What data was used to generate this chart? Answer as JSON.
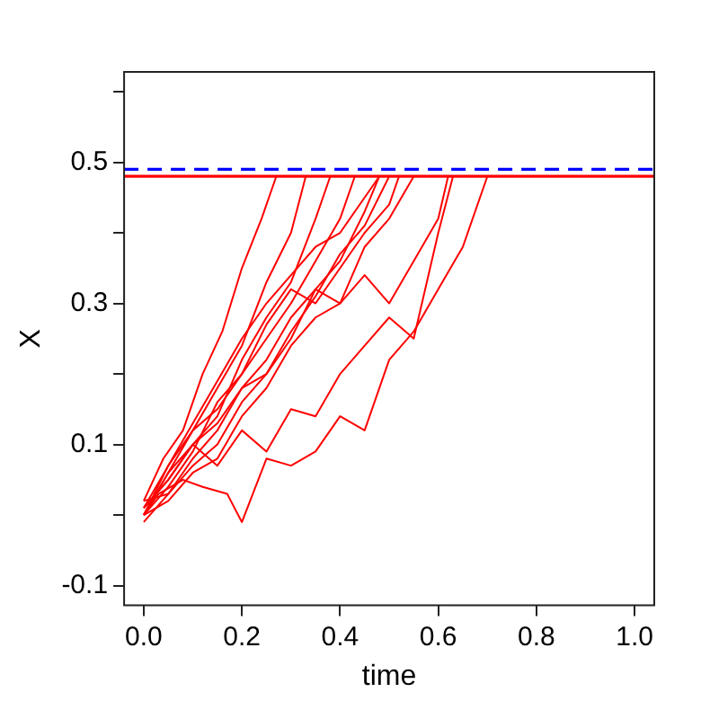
{
  "chart_data": {
    "type": "line",
    "xlabel": "time",
    "ylabel": "X",
    "marker": "none",
    "line_style": "solid",
    "grid": false,
    "legend": false,
    "xlim": [
      -0.04,
      1.04
    ],
    "ylim": [
      -0.128,
      0.628
    ],
    "xticks": [
      {
        "value": 0,
        "label": "0.0"
      },
      0.2,
      0.4,
      0.6,
      0.8,
      {
        "value": 1,
        "label": "1.0"
      }
    ],
    "yticks": [
      -0.1,
      {
        "value": 0,
        "label": null
      },
      0.1,
      {
        "value": 0.2,
        "label": null
      },
      0.3,
      {
        "value": 0.4,
        "label": null
      },
      0.5,
      {
        "value": 0.6,
        "label": null
      }
    ],
    "ref_lines": [
      {
        "axis": "y",
        "value": 0.49,
        "color": "#0000ff",
        "line_style": "dashed"
      },
      {
        "axis": "y",
        "value": 0.48,
        "color": "#ff0000",
        "line_style": "solid"
      }
    ],
    "series": [
      {
        "color": "#ff0000",
        "x": [
          0,
          0.03,
          0.08,
          0.12,
          0.17,
          0.2,
          0.25,
          0.3,
          0.35,
          0.4,
          0.45,
          0.5,
          0.55,
          0.6,
          0.65,
          0.7
        ],
        "values": [
          0,
          0.03,
          0.05,
          0.04,
          0.03,
          -0.01,
          0.08,
          0.07,
          0.09,
          0.14,
          0.12,
          0.22,
          0.26,
          0.32,
          0.38,
          0.48
        ]
      },
      {
        "color": "#ff0000",
        "x": [
          0,
          0.05,
          0.1,
          0.15,
          0.2,
          0.25,
          0.3,
          0.35,
          0.4,
          0.45,
          0.5,
          0.55,
          0.6,
          0.63
        ],
        "values": [
          0.01,
          0.05,
          0.1,
          0.07,
          0.12,
          0.09,
          0.15,
          0.14,
          0.2,
          0.24,
          0.28,
          0.25,
          0.4,
          0.48
        ]
      },
      {
        "color": "#ff0000",
        "x": [
          0,
          0.05,
          0.1,
          0.15,
          0.2,
          0.25,
          0.3,
          0.35,
          0.4,
          0.45,
          0.5,
          0.55
        ],
        "values": [
          0,
          0.06,
          0.1,
          0.13,
          0.18,
          0.2,
          0.25,
          0.32,
          0.3,
          0.38,
          0.42,
          0.48
        ]
      },
      {
        "color": "#ff0000",
        "x": [
          0,
          0.04,
          0.08,
          0.12,
          0.16,
          0.2,
          0.24,
          0.27
        ],
        "values": [
          0.02,
          0.08,
          0.12,
          0.2,
          0.26,
          0.35,
          0.42,
          0.48
        ]
      },
      {
        "color": "#ff0000",
        "x": [
          0,
          0.05,
          0.1,
          0.15,
          0.2,
          0.25,
          0.3,
          0.33
        ],
        "values": [
          0,
          0.07,
          0.12,
          0.18,
          0.24,
          0.33,
          0.4,
          0.48
        ]
      },
      {
        "color": "#ff0000",
        "x": [
          0,
          0.05,
          0.1,
          0.15,
          0.2,
          0.25,
          0.3,
          0.35,
          0.38
        ],
        "values": [
          0.01,
          0.05,
          0.1,
          0.14,
          0.22,
          0.28,
          0.33,
          0.42,
          0.48
        ]
      },
      {
        "color": "#ff0000",
        "x": [
          0,
          0.05,
          0.1,
          0.15,
          0.2,
          0.25,
          0.3,
          0.35,
          0.4,
          0.43
        ],
        "values": [
          0,
          0.04,
          0.09,
          0.16,
          0.2,
          0.25,
          0.3,
          0.36,
          0.42,
          0.48
        ]
      },
      {
        "color": "#ff0000",
        "x": [
          0,
          0.05,
          0.1,
          0.15,
          0.2,
          0.25,
          0.3,
          0.35,
          0.4,
          0.45,
          0.48
        ],
        "values": [
          0.02,
          0.03,
          0.08,
          0.12,
          0.18,
          0.22,
          0.28,
          0.32,
          0.36,
          0.43,
          0.48
        ]
      },
      {
        "color": "#ff0000",
        "x": [
          0,
          0.05,
          0.1,
          0.15,
          0.2,
          0.25,
          0.3,
          0.35,
          0.4,
          0.45,
          0.5,
          0.52
        ],
        "values": [
          0,
          0.06,
          0.12,
          0.15,
          0.2,
          0.27,
          0.32,
          0.3,
          0.35,
          0.4,
          0.44,
          0.48
        ]
      },
      {
        "color": "#ff0000",
        "x": [
          0,
          0.05,
          0.1,
          0.15,
          0.2,
          0.25,
          0.3,
          0.35,
          0.4,
          0.45,
          0.5
        ],
        "values": [
          -0.01,
          0.03,
          0.07,
          0.1,
          0.16,
          0.2,
          0.26,
          0.31,
          0.37,
          0.41,
          0.48
        ]
      },
      {
        "color": "#ff0000",
        "x": [
          0,
          0.05,
          0.1,
          0.15,
          0.2,
          0.25,
          0.3,
          0.35,
          0.4,
          0.45,
          0.48
        ],
        "values": [
          0.01,
          0.07,
          0.13,
          0.19,
          0.25,
          0.3,
          0.34,
          0.38,
          0.4,
          0.45,
          0.48
        ]
      },
      {
        "color": "#ff0000",
        "x": [
          0,
          0.05,
          0.1,
          0.15,
          0.2,
          0.25,
          0.3,
          0.35,
          0.4,
          0.45,
          0.5,
          0.55,
          0.6,
          0.62
        ],
        "values": [
          0,
          0.02,
          0.06,
          0.08,
          0.14,
          0.18,
          0.24,
          0.28,
          0.3,
          0.34,
          0.3,
          0.36,
          0.42,
          0.48
        ]
      }
    ]
  }
}
